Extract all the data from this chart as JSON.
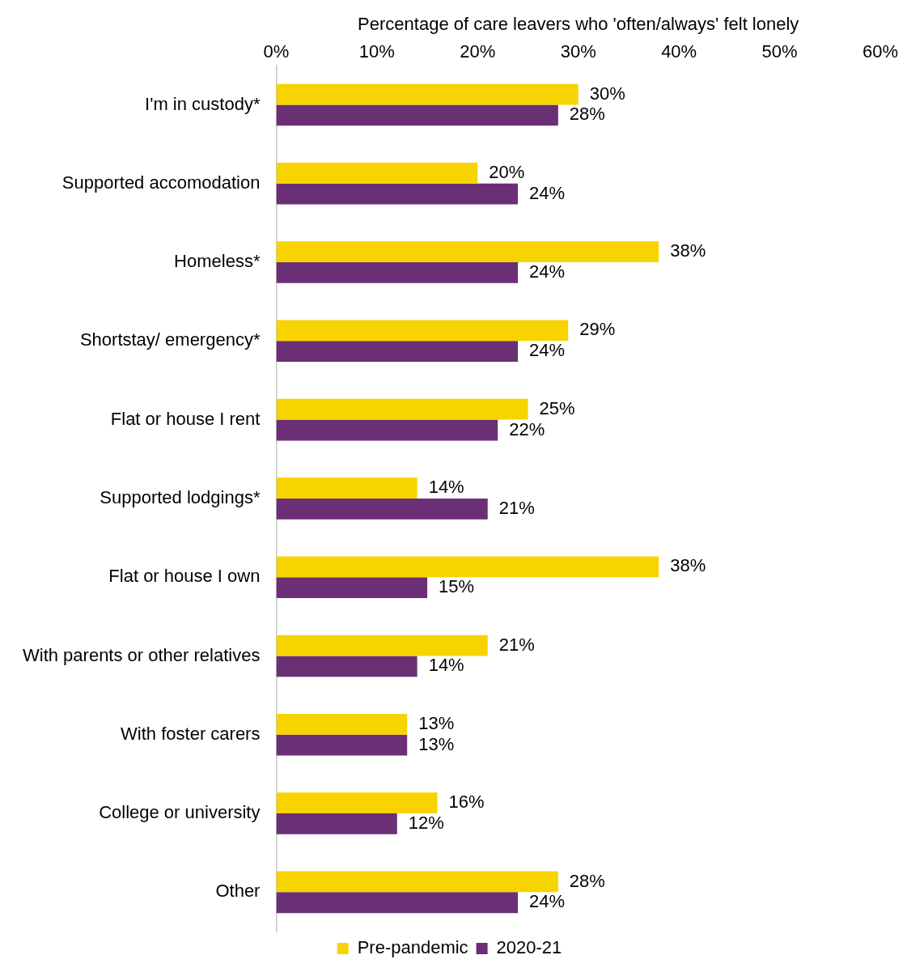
{
  "chart_data": {
    "type": "bar",
    "orientation": "horizontal",
    "xlabel": "Percentage of care leavers who 'often/always' felt lonely",
    "categories": [
      "I'm in custody*",
      "Supported accomodation",
      "Homeless*",
      "Shortstay/ emergency*",
      "Flat or house I rent",
      "Supported lodgings*",
      "Flat or house I own",
      "With parents or other relatives",
      "With foster carers",
      "College or university",
      "Other"
    ],
    "series": [
      {
        "name": "Pre-pandemic",
        "color": "#f7d400",
        "values": [
          30,
          20,
          38,
          29,
          25,
          14,
          38,
          21,
          13,
          16,
          28
        ],
        "value_labels": [
          "30%",
          "20%",
          "38%",
          "29%",
          "25%",
          "14%",
          "38%",
          "21%",
          "13%",
          "16%",
          "28%"
        ]
      },
      {
        "name": "2020-21",
        "color": "#6b2f76",
        "values": [
          28,
          24,
          24,
          24,
          22,
          21,
          15,
          14,
          13,
          12,
          24
        ],
        "value_labels": [
          "28%",
          "24%",
          "24%",
          "24%",
          "22%",
          "21%",
          "15%",
          "14%",
          "13%",
          "12%",
          "24%"
        ]
      }
    ],
    "xlim": [
      0,
      60
    ],
    "xticks": [
      {
        "value": 0,
        "label": "0%"
      },
      {
        "value": 10,
        "label": "10%"
      },
      {
        "value": 20,
        "label": "20%"
      },
      {
        "value": 30,
        "label": "30%"
      },
      {
        "value": 40,
        "label": "40%"
      },
      {
        "value": 50,
        "label": "50%"
      },
      {
        "value": 60,
        "label": "60%"
      }
    ],
    "grid": false,
    "legend": "bottom"
  }
}
